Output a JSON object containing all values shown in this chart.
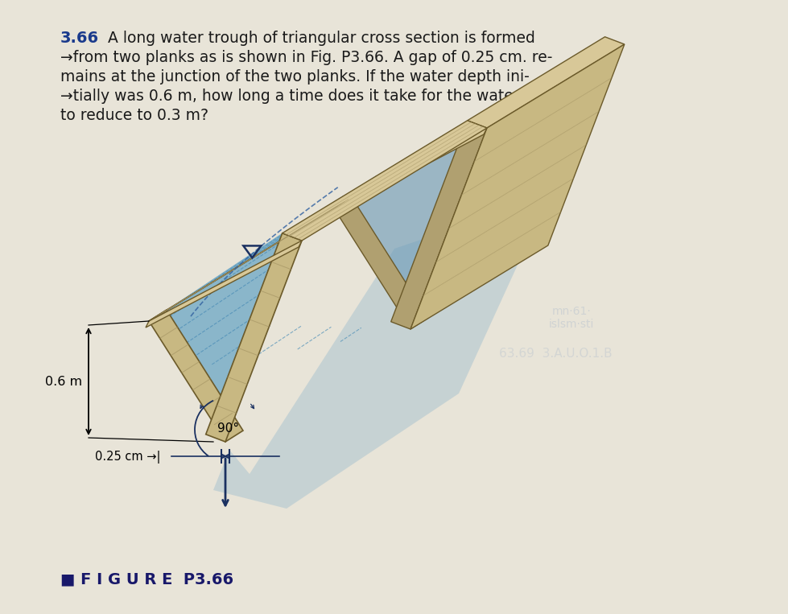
{
  "bg_color": "#e8e4d8",
  "title_num": "3.66",
  "title_text_line1": " A long water trough of triangular cross section is formed",
  "title_text_line2": "from two planks as is shown in Fig. P3.66. A gap of 0.25 cm. re-",
  "title_text_line3": "mains at the junction of the two planks. If the water depth ini-",
  "title_text_line4": "tially was 0.6 m, how long a time does it take for the water depth",
  "title_text_line5": "to reduce to 0.3 m?",
  "figure_label": "■ F I G U R E  P3.66",
  "dim_depth": "0.6 m",
  "dim_gap": "0.25 cm",
  "dim_angle": "90°",
  "wood_face": "#c8b882",
  "wood_top": "#d8c898",
  "wood_edge": "#6b5a2a",
  "wood_grain": "#a09060",
  "water_fill": "#7aaec8",
  "water_surface": "#90c0d8",
  "water_dashed": "#5090b8",
  "shadow_blue": "#7aaac8",
  "arrow_dark": "#1a3060",
  "text_color": "#1a1a1a",
  "faded_back": "#c0c8d0"
}
